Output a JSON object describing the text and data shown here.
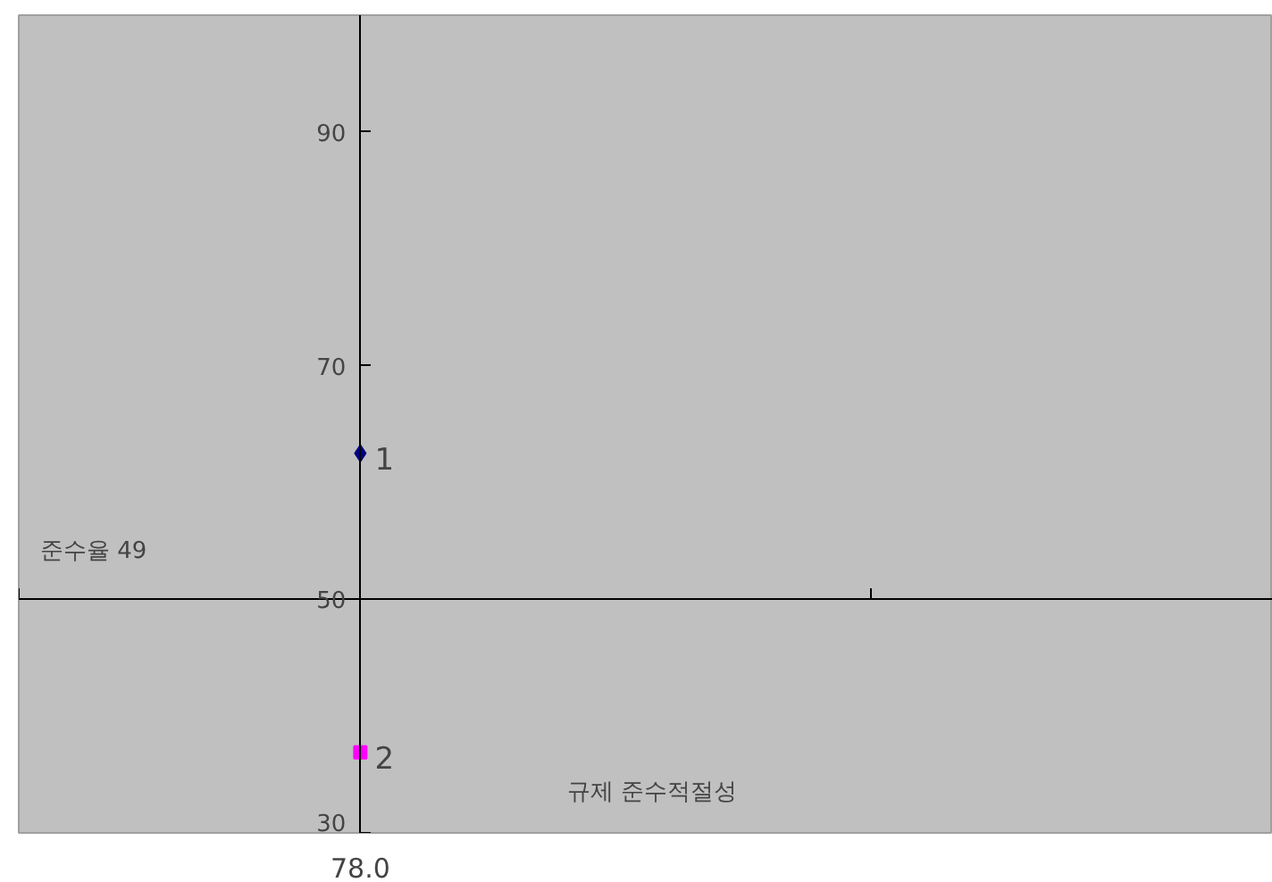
{
  "chart_data": {
    "type": "scatter",
    "categories": [
      "78.0"
    ],
    "ylim": [
      30,
      100
    ],
    "yticks": [
      30,
      50,
      70,
      90
    ],
    "ref_lines": [
      {
        "axis": "y",
        "value": 50,
        "label": null
      }
    ],
    "annotations": [
      "준수율 49",
      "규제 준수적절성"
    ],
    "grid": false,
    "series": [
      {
        "name": "1",
        "color": "#000080",
        "values": [
          62.5
        ],
        "marker": "diamond"
      },
      {
        "name": "2",
        "color": "#ff00ff",
        "values": [
          36.9
        ],
        "marker": "square"
      }
    ]
  }
}
